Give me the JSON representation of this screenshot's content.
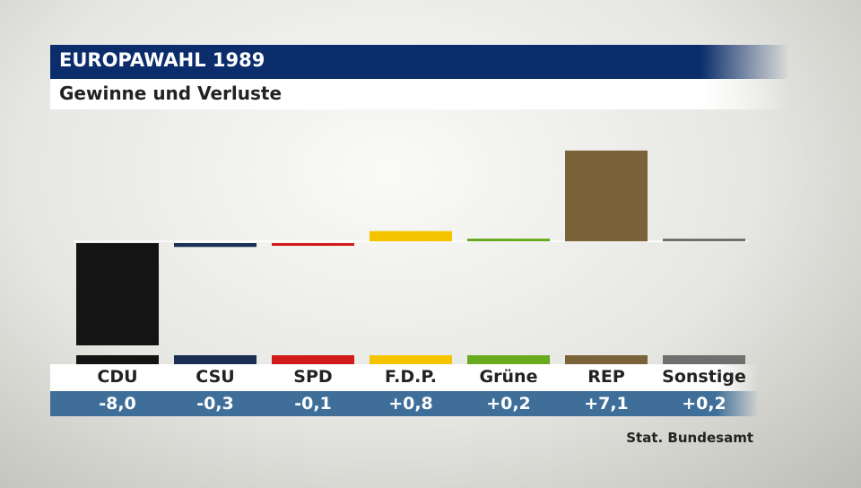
{
  "header": {
    "title": "EUROPAWAHL 1989",
    "subtitle": "Gewinne und Verluste"
  },
  "source": "Stat. Bundesamt",
  "chart_data": {
    "type": "bar",
    "title": "EUROPAWAHL 1989",
    "subtitle": "Gewinne und Verluste",
    "categories": [
      "CDU",
      "CSU",
      "SPD",
      "F.D.P.",
      "Grüne",
      "REP",
      "Sonstige"
    ],
    "values": [
      -8.0,
      -0.3,
      -0.1,
      0.8,
      0.2,
      7.1,
      0.2
    ],
    "value_labels": [
      "-8,0",
      "-0,3",
      "-0,1",
      "+0,8",
      "+0,2",
      "+7,1",
      "+0,2"
    ],
    "colors": [
      "#141414",
      "#1b2f55",
      "#d11a1a",
      "#f5c400",
      "#6aaa1e",
      "#7a6338",
      "#707070"
    ],
    "xlabel": "",
    "ylabel": "",
    "baseline": 0,
    "grid": false,
    "legend": "none"
  }
}
